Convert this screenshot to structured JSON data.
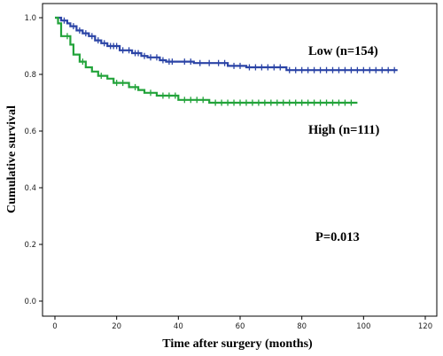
{
  "chart_data": {
    "type": "line",
    "xlabel": "Time after surgery (months)",
    "ylabel": "Cumulative survival",
    "xlim": [
      0,
      120
    ],
    "ylim": [
      0,
      1.0
    ],
    "xticks": [
      "0",
      "20",
      "40",
      "60",
      "80",
      "100",
      "120"
    ],
    "yticks": [
      "0.0",
      "0.2",
      "0.4",
      "0.6",
      "0.8",
      "1.0"
    ],
    "annotation": "P=0.013",
    "series": [
      {
        "name": "Low (n=154)",
        "color": "#2b44a6",
        "points": [
          [
            0,
            1.0
          ],
          [
            2,
            1.0
          ],
          [
            2,
            0.99
          ],
          [
            4,
            0.99
          ],
          [
            4,
            0.98
          ],
          [
            5,
            0.98
          ],
          [
            5,
            0.97
          ],
          [
            7,
            0.97
          ],
          [
            7,
            0.955
          ],
          [
            9,
            0.955
          ],
          [
            9,
            0.945
          ],
          [
            11,
            0.945
          ],
          [
            11,
            0.935
          ],
          [
            13,
            0.935
          ],
          [
            13,
            0.92
          ],
          [
            15,
            0.92
          ],
          [
            15,
            0.91
          ],
          [
            17,
            0.91
          ],
          [
            17,
            0.9
          ],
          [
            21,
            0.9
          ],
          [
            21,
            0.885
          ],
          [
            25,
            0.885
          ],
          [
            25,
            0.875
          ],
          [
            28,
            0.875
          ],
          [
            28,
            0.865
          ],
          [
            30,
            0.865
          ],
          [
            30,
            0.86
          ],
          [
            34,
            0.86
          ],
          [
            34,
            0.85
          ],
          [
            36,
            0.85
          ],
          [
            36,
            0.845
          ],
          [
            45,
            0.845
          ],
          [
            45,
            0.84
          ],
          [
            56,
            0.84
          ],
          [
            56,
            0.83
          ],
          [
            62,
            0.83
          ],
          [
            62,
            0.825
          ],
          [
            75,
            0.825
          ],
          [
            75,
            0.815
          ],
          [
            111,
            0.815
          ]
        ],
        "censor_x": [
          3,
          6,
          8,
          10,
          12,
          14,
          16,
          18,
          19,
          20,
          22,
          24,
          26,
          27,
          29,
          31,
          33,
          35,
          37,
          38,
          42,
          44,
          47,
          50,
          53,
          55,
          58,
          60,
          63,
          65,
          67,
          69,
          71,
          73,
          76,
          78,
          80,
          82,
          84,
          86,
          88,
          90,
          92,
          94,
          96,
          98,
          100,
          102,
          104,
          106,
          108,
          110
        ]
      },
      {
        "name": "High (n=111)",
        "color": "#22a33a",
        "points": [
          [
            0,
            1.0
          ],
          [
            1,
            1.0
          ],
          [
            1,
            0.98
          ],
          [
            2,
            0.98
          ],
          [
            2,
            0.935
          ],
          [
            5,
            0.935
          ],
          [
            5,
            0.905
          ],
          [
            6,
            0.905
          ],
          [
            6,
            0.87
          ],
          [
            8,
            0.87
          ],
          [
            8,
            0.845
          ],
          [
            10,
            0.845
          ],
          [
            10,
            0.825
          ],
          [
            12,
            0.825
          ],
          [
            12,
            0.81
          ],
          [
            14,
            0.81
          ],
          [
            14,
            0.795
          ],
          [
            17,
            0.795
          ],
          [
            17,
            0.785
          ],
          [
            19,
            0.785
          ],
          [
            19,
            0.77
          ],
          [
            24,
            0.77
          ],
          [
            24,
            0.755
          ],
          [
            27,
            0.755
          ],
          [
            27,
            0.745
          ],
          [
            29,
            0.745
          ],
          [
            29,
            0.735
          ],
          [
            33,
            0.735
          ],
          [
            33,
            0.725
          ],
          [
            40,
            0.725
          ],
          [
            40,
            0.71
          ],
          [
            50,
            0.71
          ],
          [
            50,
            0.7
          ],
          [
            98,
            0.7
          ]
        ],
        "censor_x": [
          4,
          9,
          15,
          20,
          22,
          26,
          31,
          35,
          37,
          39,
          42,
          44,
          46,
          48,
          52,
          54,
          56,
          58,
          60,
          62,
          64,
          66,
          68,
          70,
          72,
          74,
          76,
          78,
          80,
          82,
          84,
          86,
          88,
          90,
          92,
          94,
          96
        ]
      }
    ]
  }
}
